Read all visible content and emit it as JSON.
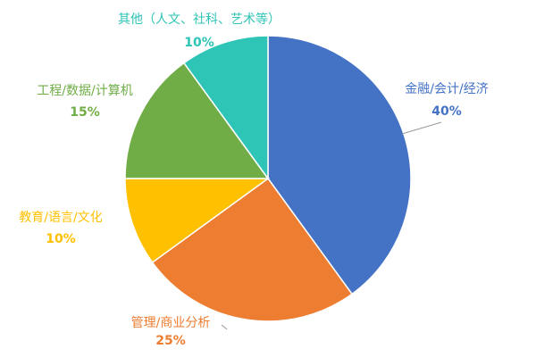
{
  "chart_data": {
    "type": "pie",
    "title": "",
    "slices": [
      {
        "label": "金融/会计/经济",
        "value": 40,
        "value_text": "40%",
        "color": "#4472C4"
      },
      {
        "label": "管理/商业分析",
        "value": 25,
        "value_text": "25%",
        "color": "#ED7D31"
      },
      {
        "label": "教育/语言/文化",
        "value": 10,
        "value_text": "10%",
        "color": "#FFC000"
      },
      {
        "label": "工程/数据/计算机",
        "value": 15,
        "value_text": "15%",
        "color": "#70AD47"
      },
      {
        "label": "其他（人文、社科、艺术等）",
        "value": 10,
        "value_text": "10%",
        "color": "#2EC4B6"
      }
    ],
    "start_angle": "12 o'clock",
    "direction": "clockwise"
  }
}
